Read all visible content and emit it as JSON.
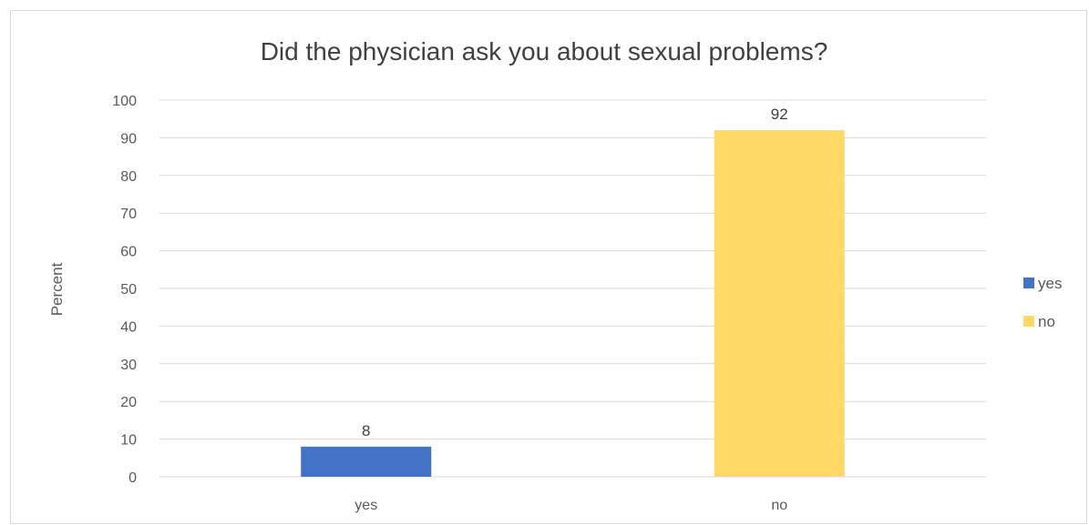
{
  "chart_data": {
    "type": "bar",
    "title": "Did the physician ask you about sexual problems?",
    "xlabel": "",
    "ylabel": "Percent",
    "categories": [
      "yes",
      "no"
    ],
    "values": [
      8,
      92
    ],
    "colors": [
      "#4472C4",
      "#FFD966"
    ],
    "ylim": [
      0,
      100
    ],
    "yticks": [
      0,
      10,
      20,
      30,
      40,
      50,
      60,
      70,
      80,
      90,
      100
    ],
    "grid": true,
    "legend": {
      "position": "right",
      "entries": [
        {
          "label": "yes",
          "color": "#4472C4"
        },
        {
          "label": "no",
          "color": "#FFD966"
        }
      ]
    }
  }
}
